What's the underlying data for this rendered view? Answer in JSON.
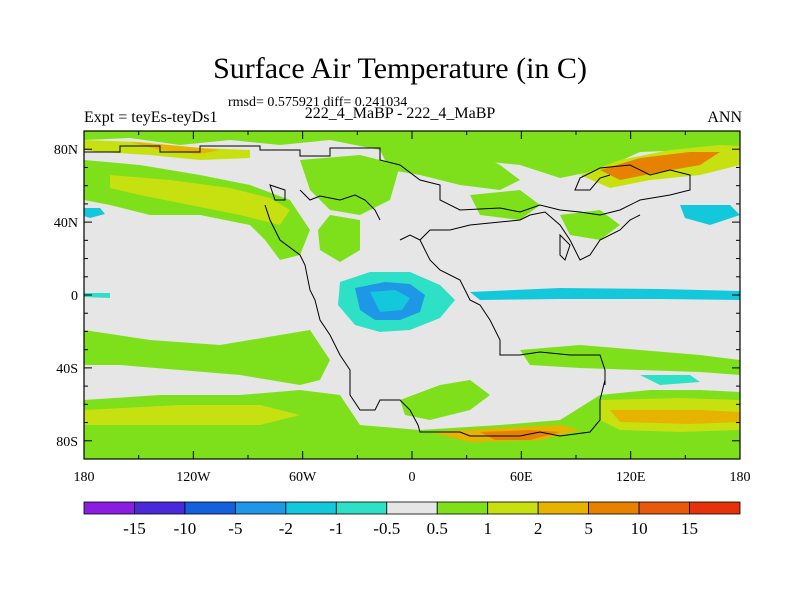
{
  "header": {
    "title": "Surface Air Temperature (in C)",
    "stats": "rmsd= 0.575921 diff= 0.241034",
    "left_label": "Expt = teyEs-teyDs1",
    "center_label": "222_4_MaBP - 222_4_MaBP",
    "right_label": "ANN"
  },
  "map": {
    "x_ticks": [
      "180",
      "120W",
      "60W",
      "0",
      "60E",
      "120E",
      "180"
    ],
    "y_ticks": [
      "80N",
      "40N",
      "0",
      "40S",
      "80S"
    ],
    "background_color": "#e6e6e6"
  },
  "colorbar": {
    "labels": [
      "-15",
      "-10",
      "-5",
      "-2",
      "-1",
      "-0.5",
      "0.5",
      "1",
      "2",
      "5",
      "10",
      "15"
    ],
    "colors": [
      "#8a1ee0",
      "#4a2ad8",
      "#1560dc",
      "#1e98e6",
      "#14c8dc",
      "#2ee0c6",
      "#e6e6e6",
      "#7ee01a",
      "#c6e010",
      "#e6b400",
      "#e68200",
      "#e65a0a",
      "#e6320a"
    ]
  },
  "fill_colors": {
    "lightgreen": "#7ee01a",
    "yellowgreen": "#c6e010",
    "orange": "#e6b400",
    "darkorange": "#e68200",
    "cyan": "#14c8dc",
    "teal": "#2ee0c6"
  }
}
